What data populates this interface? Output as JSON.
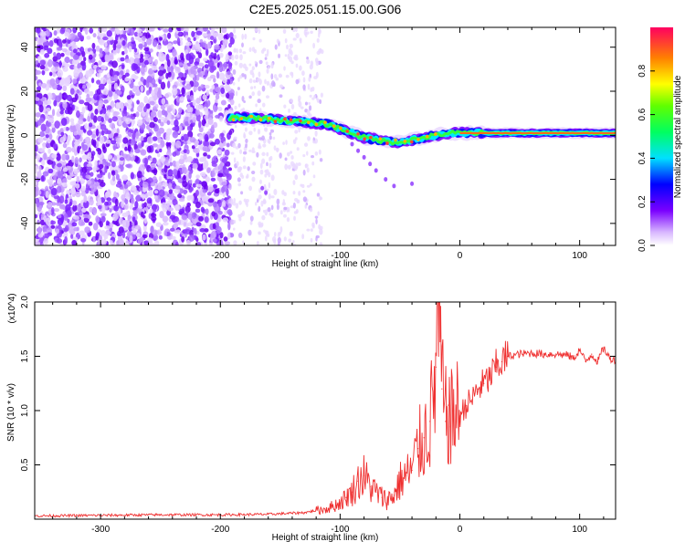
{
  "title": "C2E5.2025.051.15.00.G06",
  "chart_data": [
    {
      "type": "heatmap",
      "xlabel": "Height of straight line (km)",
      "ylabel": "Frequency (Hz)",
      "xlim": [
        -355,
        130
      ],
      "ylim": [
        -50,
        49
      ],
      "xticks": [
        -300,
        -200,
        -100,
        0,
        100
      ],
      "xtick_labels": [
        "-300",
        "-200",
        "-100",
        "0",
        "100"
      ],
      "yticks": [
        -40,
        -20,
        0,
        20,
        40
      ],
      "ytick_labels": [
        "-40",
        "-20",
        "0",
        "20",
        "40"
      ],
      "colorbar": {
        "label": "Normalized spectral amplitude",
        "range": [
          0,
          1
        ],
        "ticks": [
          0,
          0.2,
          0.4,
          0.6,
          0.8
        ],
        "tick_labels": [
          "0.0",
          "0.2",
          "0.4",
          "0.6",
          "0.8"
        ]
      },
      "ridge": {
        "x": [
          -192,
          -170,
          -150,
          -130,
          -110,
          -100,
          -90,
          -80,
          -70,
          -60,
          -50,
          -40,
          -30,
          -20,
          -10,
          0,
          20,
          50,
          90,
          110,
          130
        ],
        "frequency": [
          8,
          8,
          7,
          6,
          5,
          3,
          1,
          -1,
          -2,
          -3,
          -3,
          -2,
          -1,
          0,
          1,
          1,
          1,
          1,
          1,
          1,
          1
        ],
        "amplitude": [
          0.5,
          0.5,
          0.45,
          0.4,
          0.4,
          0.4,
          0.45,
          0.5,
          0.55,
          0.5,
          0.5,
          0.55,
          0.6,
          0.65,
          0.7,
          0.75,
          0.8,
          0.85,
          0.9,
          0.9,
          0.9
        ]
      },
      "noise_region_x": [
        -355,
        -190
      ]
    },
    {
      "type": "line",
      "xlabel": "Height of straight line (km)",
      "ylabel": "SNR (10 * v/v)",
      "y_multiplier": "(x10^4)",
      "xlim": [
        -355,
        130
      ],
      "ylim": [
        0,
        20000
      ],
      "xticks": [
        -300,
        -200,
        -100,
        0,
        100
      ],
      "xtick_labels": [
        "-300",
        "-200",
        "-100",
        "0",
        "100"
      ],
      "yticks": [
        5000,
        10000,
        15000,
        20000
      ],
      "ytick_labels": [
        "0.5",
        "1.0",
        "1.5",
        "2.0"
      ],
      "series": [
        {
          "color": "#ef3030",
          "x": [
            -355,
            -300,
            -250,
            -200,
            -160,
            -130,
            -110,
            -100,
            -95,
            -90,
            -85,
            -80,
            -75,
            -70,
            -65,
            -60,
            -55,
            -50,
            -45,
            -40,
            -35,
            -30,
            -25,
            -22,
            -20,
            -18,
            -15,
            -12,
            -10,
            -8,
            -5,
            0,
            5,
            10,
            15,
            20,
            25,
            30,
            35,
            40,
            50,
            60,
            70,
            80,
            90,
            95,
            100,
            105,
            110,
            115,
            120,
            125,
            130
          ],
          "y": [
            300,
            350,
            400,
            400,
            450,
            600,
            1000,
            1500,
            2000,
            2500,
            3500,
            4000,
            3000,
            2500,
            2000,
            1800,
            2200,
            3500,
            4000,
            4500,
            6500,
            7500,
            9000,
            11000,
            14000,
            20000,
            12000,
            9000,
            10500,
            8500,
            10000,
            9500,
            10500,
            11000,
            12000,
            12500,
            13000,
            14000,
            14500,
            15000,
            15200,
            15300,
            15200,
            15200,
            15100,
            14800,
            15600,
            14500,
            15200,
            14500,
            15800,
            14800,
            14700
          ]
        }
      ]
    }
  ]
}
